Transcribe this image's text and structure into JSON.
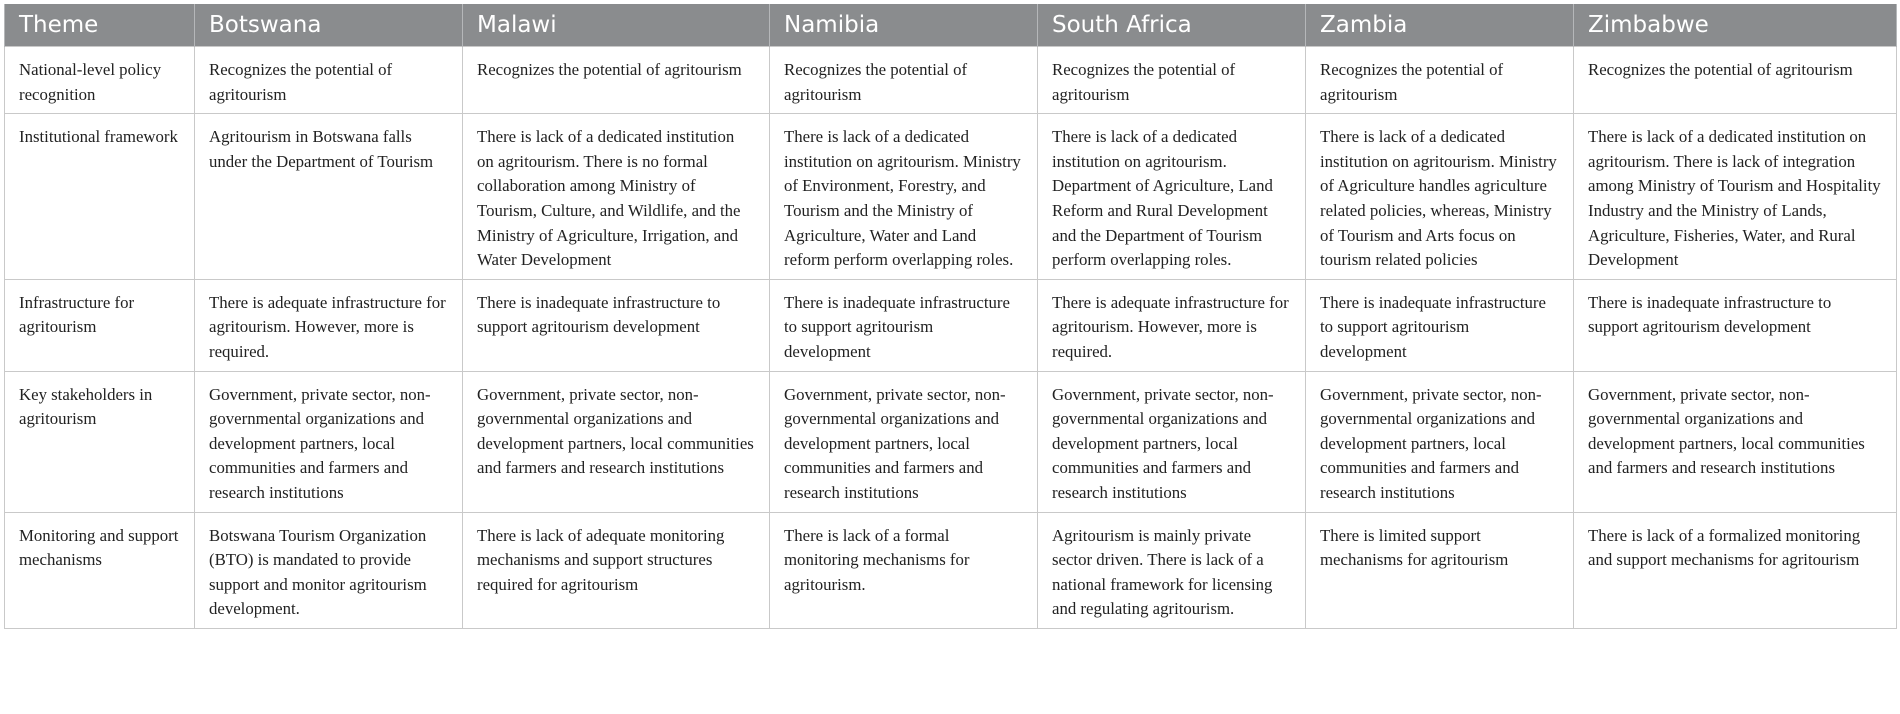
{
  "table": {
    "headers": [
      "Theme",
      "Botswana",
      "Malawi",
      "Namibia",
      "South Africa",
      "Zambia",
      "Zimbabwe"
    ],
    "rows": [
      {
        "theme": "National-level policy recognition",
        "cells": [
          "Recognizes the potential of agritourism",
          "Recognizes the potential of agritourism",
          "Recognizes the potential of agritourism",
          "Recognizes the potential of agritourism",
          "Recognizes the potential of agritourism",
          "Recognizes the potential of agritourism"
        ]
      },
      {
        "theme": "Institutional framework",
        "cells": [
          "Agritourism in Botswana falls under the Department of Tourism",
          "There is lack of a dedicated institution on agritourism. There is no formal collaboration among Ministry of Tourism, Culture, and Wildlife, and the Ministry of Agriculture, Irrigation, and Water Development",
          "There is lack of a dedicated institution on agritourism. Ministry of Environment, Forestry, and Tourism and the Ministry of Agriculture, Water and Land reform perform overlapping roles.",
          "There is lack of a dedicated institution on agritourism. Department of Agriculture, Land Reform and Rural Development and the Department of Tourism perform overlapping roles.",
          "There is lack of a dedicated institution on agritourism. Ministry of Agriculture handles agriculture related policies, whereas, Ministry of Tourism and Arts focus on tourism related policies",
          "There is lack of a dedicated institution on agritourism. There is lack of integration among Ministry of Tourism and Hospitality Industry and the Ministry of Lands, Agriculture, Fisheries, Water, and Rural Development"
        ]
      },
      {
        "theme": "Infrastructure for agritourism",
        "cells": [
          "There is adequate infrastructure for agritourism. However, more is required.",
          "There is inadequate infrastructure to support agritourism development",
          "There is inadequate infrastructure to support agritourism development",
          "There is adequate infrastructure for agritourism. However, more is required.",
          "There is inadequate infrastructure to support agritourism development",
          "There is inadequate infrastructure to support agritourism development"
        ]
      },
      {
        "theme": "Key stakeholders in agritourism",
        "cells": [
          "Government, private sector, non-governmental organizations and development partners, local communities and farmers and research institutions",
          "Government, private sector, non-governmental organizations and development partners, local communities and farmers and research institutions",
          "Government, private sector, non-governmental organizations and development partners, local communities and farmers and research institutions",
          "Government, private sector, non-governmental organizations and development partners, local communities and farmers and research institutions",
          "Government, private sector, non-governmental organizations and development partners, local communities and farmers and research institutions",
          "Government, private sector, non-governmental organizations and development partners, local communities and farmers and research institutions"
        ]
      },
      {
        "theme": "Monitoring and support mechanisms",
        "cells": [
          "Botswana Tourism Organization (BTO) is mandated to provide support and monitor agritourism development.",
          "There is lack of adequate monitoring mechanisms and support structures required for agritourism",
          "There is lack of a formal monitoring mechanisms for agritourism.",
          "Agritourism is mainly private sector driven. There is lack of a national framework for licensing and regulating agritourism.",
          "There is limited support mechanisms for agritourism",
          "There is lack of a formalized monitoring and support mechanisms for agritourism"
        ]
      }
    ]
  }
}
